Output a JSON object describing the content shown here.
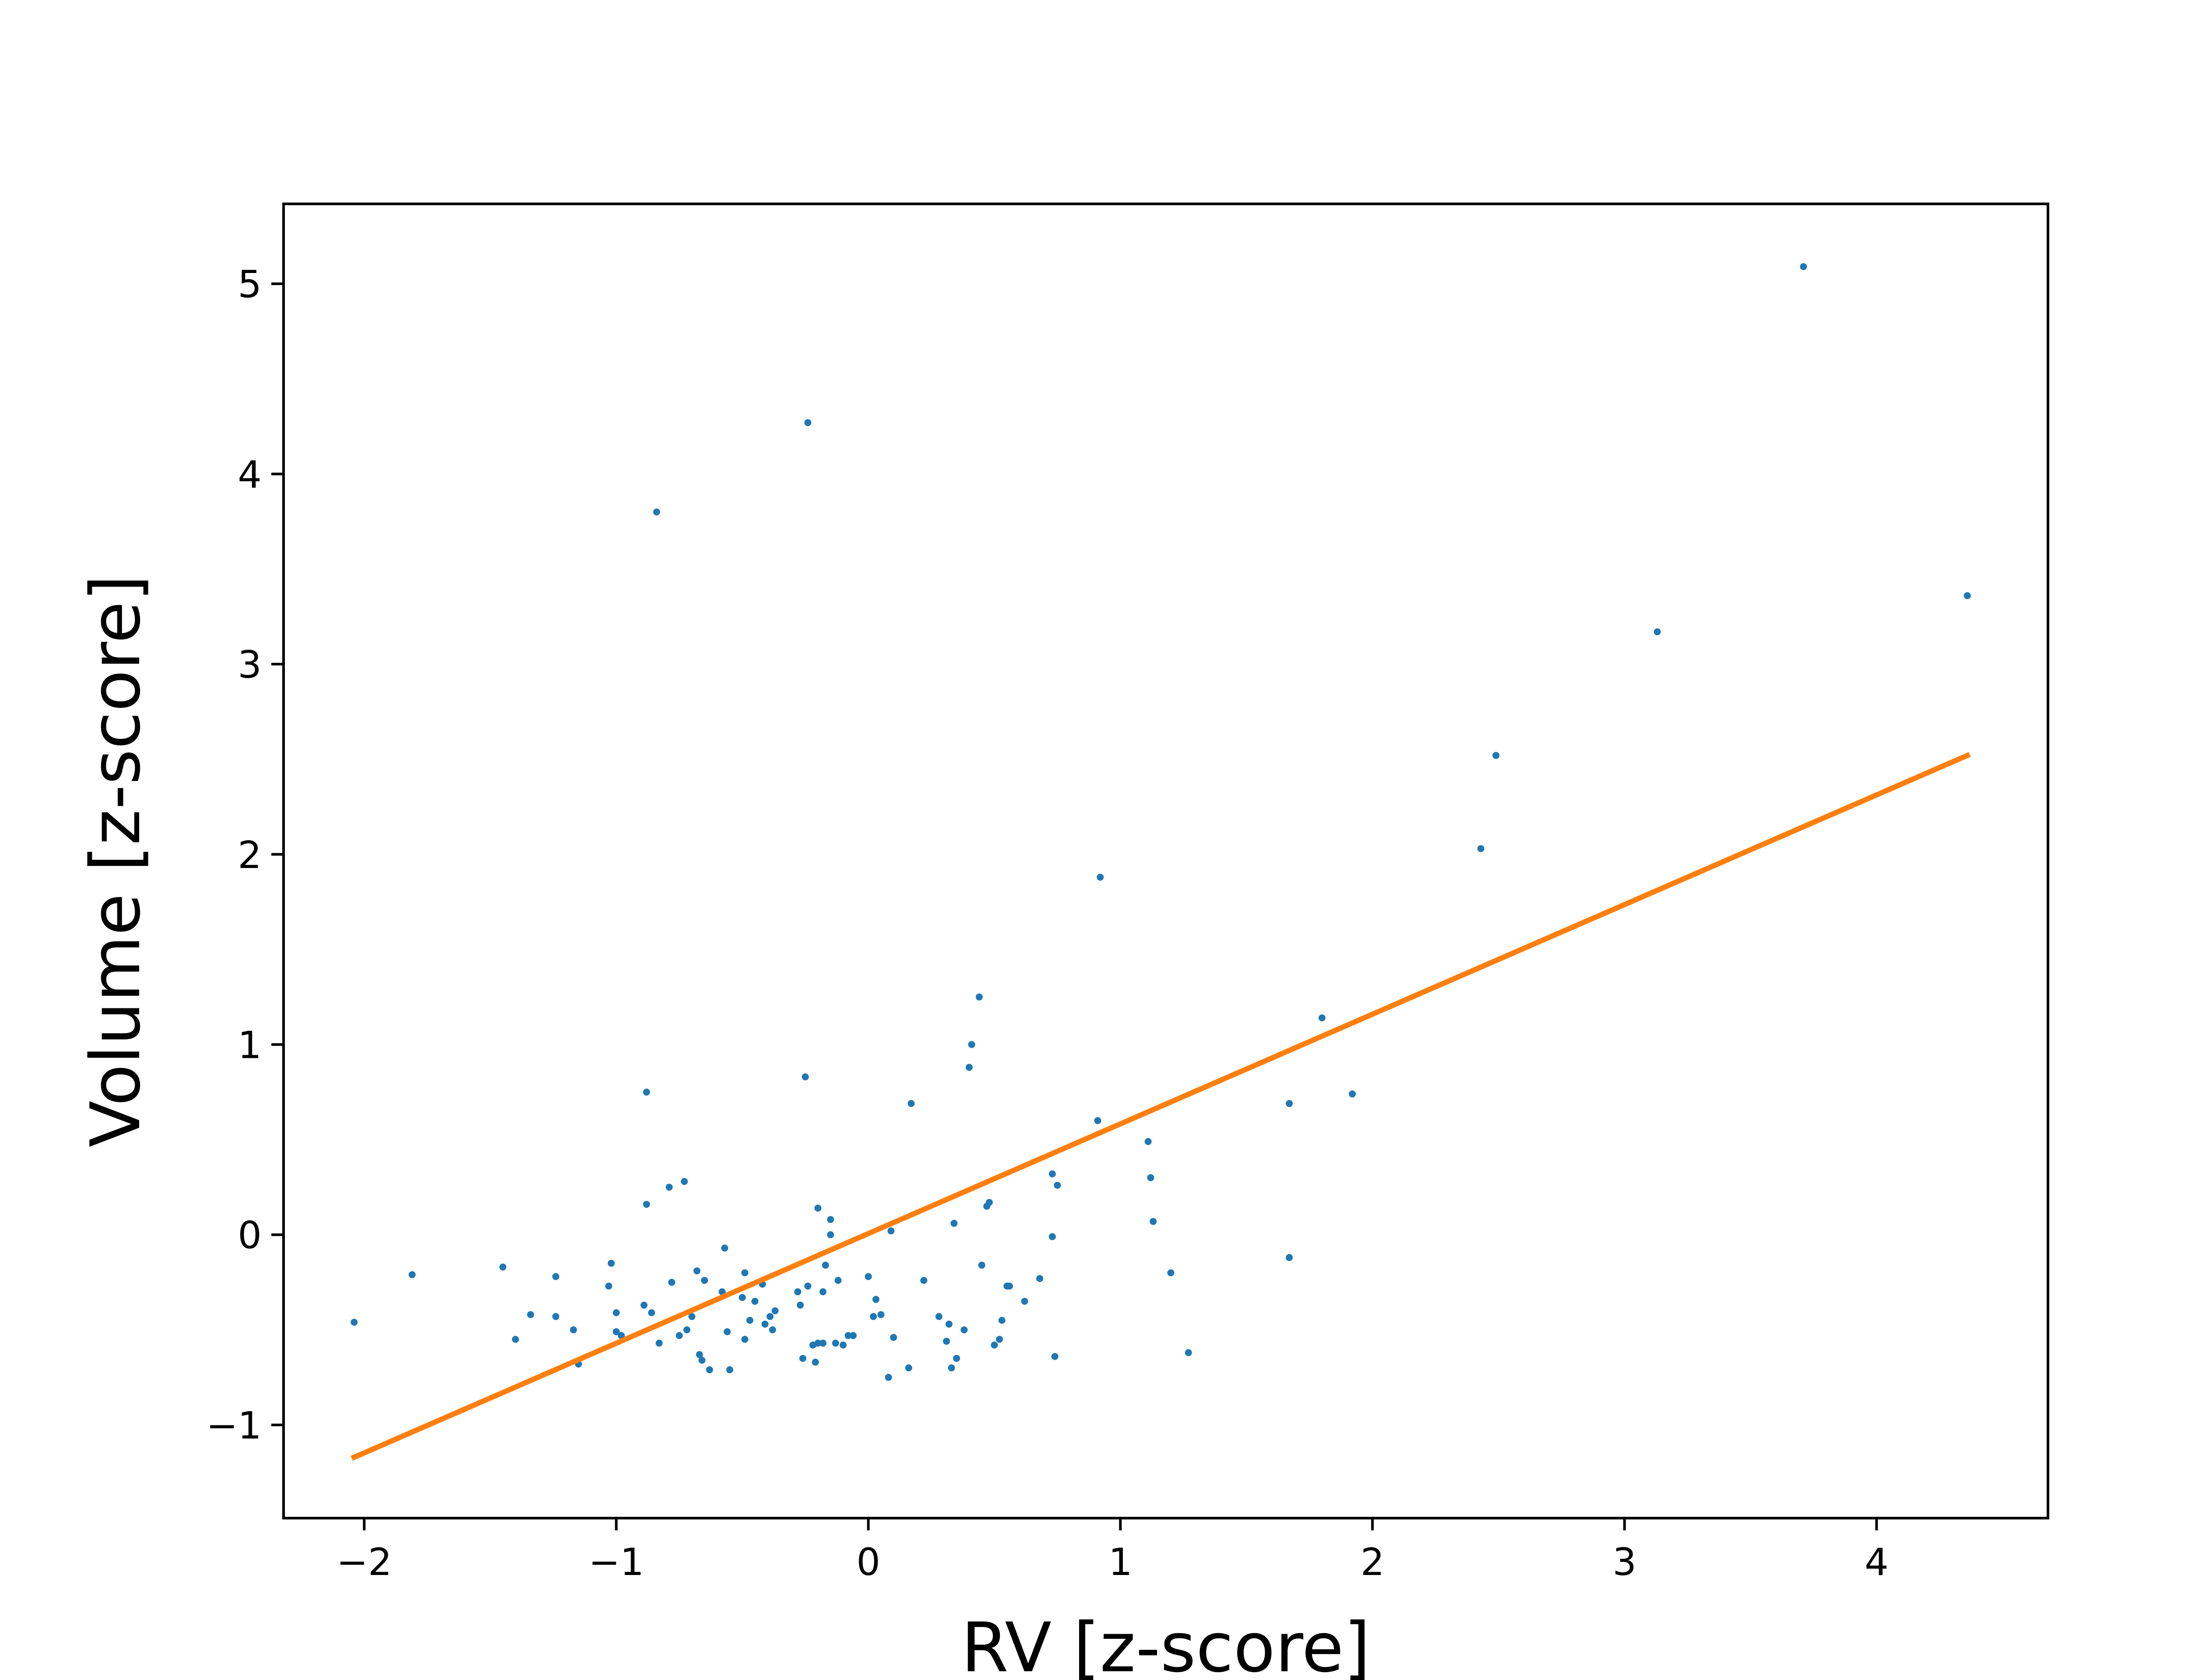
{
  "chart_data": {
    "type": "scatter",
    "title": "",
    "xlabel": "RV [z-score]",
    "ylabel": "Volume [z-score]",
    "xlim": [
      -2.32,
      4.68
    ],
    "ylim": [
      -1.49,
      5.42
    ],
    "xticks": [
      -2,
      -1,
      0,
      1,
      2,
      3,
      4
    ],
    "yticks": [
      -1,
      0,
      1,
      2,
      3,
      4,
      5
    ],
    "grid": false,
    "legend": "none",
    "colors": {
      "points": "#1f77b4",
      "fit_line": "#ff7f0e",
      "axes": "#000000"
    },
    "series": [
      {
        "kind": "points",
        "points": [
          [
            -2.04,
            -0.46
          ],
          [
            -1.81,
            -0.21
          ],
          [
            -1.45,
            -0.17
          ],
          [
            -1.4,
            -0.55
          ],
          [
            -1.34,
            -0.42
          ],
          [
            -1.24,
            -0.22
          ],
          [
            -1.24,
            -0.43
          ],
          [
            -1.17,
            -0.5
          ],
          [
            -1.15,
            -0.68
          ],
          [
            -1.03,
            -0.27
          ],
          [
            -1.02,
            -0.15
          ],
          [
            -1.0,
            -0.41
          ],
          [
            -1.0,
            -0.51
          ],
          [
            -0.98,
            -0.53
          ],
          [
            -0.89,
            -0.37
          ],
          [
            -0.88,
            0.75
          ],
          [
            -0.88,
            0.16
          ],
          [
            -0.86,
            -0.41
          ],
          [
            -0.83,
            -0.57
          ],
          [
            -0.84,
            3.8
          ],
          [
            -0.79,
            0.25
          ],
          [
            -0.78,
            -0.25
          ],
          [
            -0.75,
            -0.53
          ],
          [
            -0.73,
            0.28
          ],
          [
            -0.72,
            -0.5
          ],
          [
            -0.7,
            -0.43
          ],
          [
            -0.68,
            -0.19
          ],
          [
            -0.67,
            -0.63
          ],
          [
            -0.66,
            -0.66
          ],
          [
            -0.65,
            -0.24
          ],
          [
            -0.63,
            -0.71
          ],
          [
            -0.58,
            -0.3
          ],
          [
            -0.57,
            -0.07
          ],
          [
            -0.56,
            -0.51
          ],
          [
            -0.55,
            -0.71
          ],
          [
            -0.5,
            -0.33
          ],
          [
            -0.49,
            -0.2
          ],
          [
            -0.49,
            -0.55
          ],
          [
            -0.47,
            -0.45
          ],
          [
            -0.45,
            -0.35
          ],
          [
            -0.42,
            -0.26
          ],
          [
            -0.41,
            -0.47
          ],
          [
            -0.39,
            -0.43
          ],
          [
            -0.38,
            -0.5
          ],
          [
            -0.37,
            -0.4
          ],
          [
            -0.28,
            -0.3
          ],
          [
            -0.27,
            -0.37
          ],
          [
            -0.26,
            -0.65
          ],
          [
            -0.25,
            0.83
          ],
          [
            -0.24,
            -0.27
          ],
          [
            -0.24,
            4.27
          ],
          [
            -0.22,
            -0.58
          ],
          [
            -0.21,
            -0.67
          ],
          [
            -0.2,
            0.14
          ],
          [
            -0.2,
            -0.57
          ],
          [
            -0.18,
            -0.3
          ],
          [
            -0.18,
            -0.57
          ],
          [
            -0.17,
            -0.16
          ],
          [
            -0.15,
            0.08
          ],
          [
            -0.15,
            0.0
          ],
          [
            -0.13,
            -0.57
          ],
          [
            -0.12,
            -0.24
          ],
          [
            -0.1,
            -0.58
          ],
          [
            -0.08,
            -0.53
          ],
          [
            -0.06,
            -0.53
          ],
          [
            0.0,
            -0.22
          ],
          [
            0.02,
            -0.43
          ],
          [
            0.03,
            -0.34
          ],
          [
            0.05,
            -0.42
          ],
          [
            0.08,
            -0.75
          ],
          [
            0.09,
            0.02
          ],
          [
            0.1,
            -0.54
          ],
          [
            0.16,
            -0.7
          ],
          [
            0.17,
            0.69
          ],
          [
            0.22,
            -0.24
          ],
          [
            0.28,
            -0.43
          ],
          [
            0.31,
            -0.56
          ],
          [
            0.32,
            -0.47
          ],
          [
            0.33,
            -0.7
          ],
          [
            0.34,
            0.06
          ],
          [
            0.35,
            -0.65
          ],
          [
            0.38,
            -0.5
          ],
          [
            0.4,
            0.88
          ],
          [
            0.41,
            1.0
          ],
          [
            0.44,
            1.25
          ],
          [
            0.45,
            -0.16
          ],
          [
            0.47,
            0.15
          ],
          [
            0.48,
            0.17
          ],
          [
            0.5,
            -0.58
          ],
          [
            0.52,
            -0.55
          ],
          [
            0.53,
            -0.45
          ],
          [
            0.55,
            -0.27
          ],
          [
            0.56,
            -0.27
          ],
          [
            0.62,
            -0.35
          ],
          [
            0.68,
            -0.23
          ],
          [
            0.73,
            -0.01
          ],
          [
            0.74,
            -0.64
          ],
          [
            0.73,
            0.32
          ],
          [
            0.75,
            0.26
          ],
          [
            0.91,
            0.6
          ],
          [
            0.92,
            1.88
          ],
          [
            1.11,
            0.49
          ],
          [
            1.12,
            0.3
          ],
          [
            1.13,
            0.07
          ],
          [
            1.2,
            -0.2
          ],
          [
            1.27,
            -0.62
          ],
          [
            1.67,
            0.69
          ],
          [
            1.67,
            -0.12
          ],
          [
            1.8,
            1.14
          ],
          [
            1.92,
            0.74
          ],
          [
            2.43,
            2.03
          ],
          [
            2.49,
            2.52
          ],
          [
            3.13,
            3.17
          ],
          [
            3.71,
            5.09
          ],
          [
            4.36,
            3.36
          ]
        ]
      },
      {
        "kind": "line",
        "points": [
          [
            -2.04,
            -1.17
          ],
          [
            4.36,
            2.52
          ]
        ]
      }
    ]
  }
}
